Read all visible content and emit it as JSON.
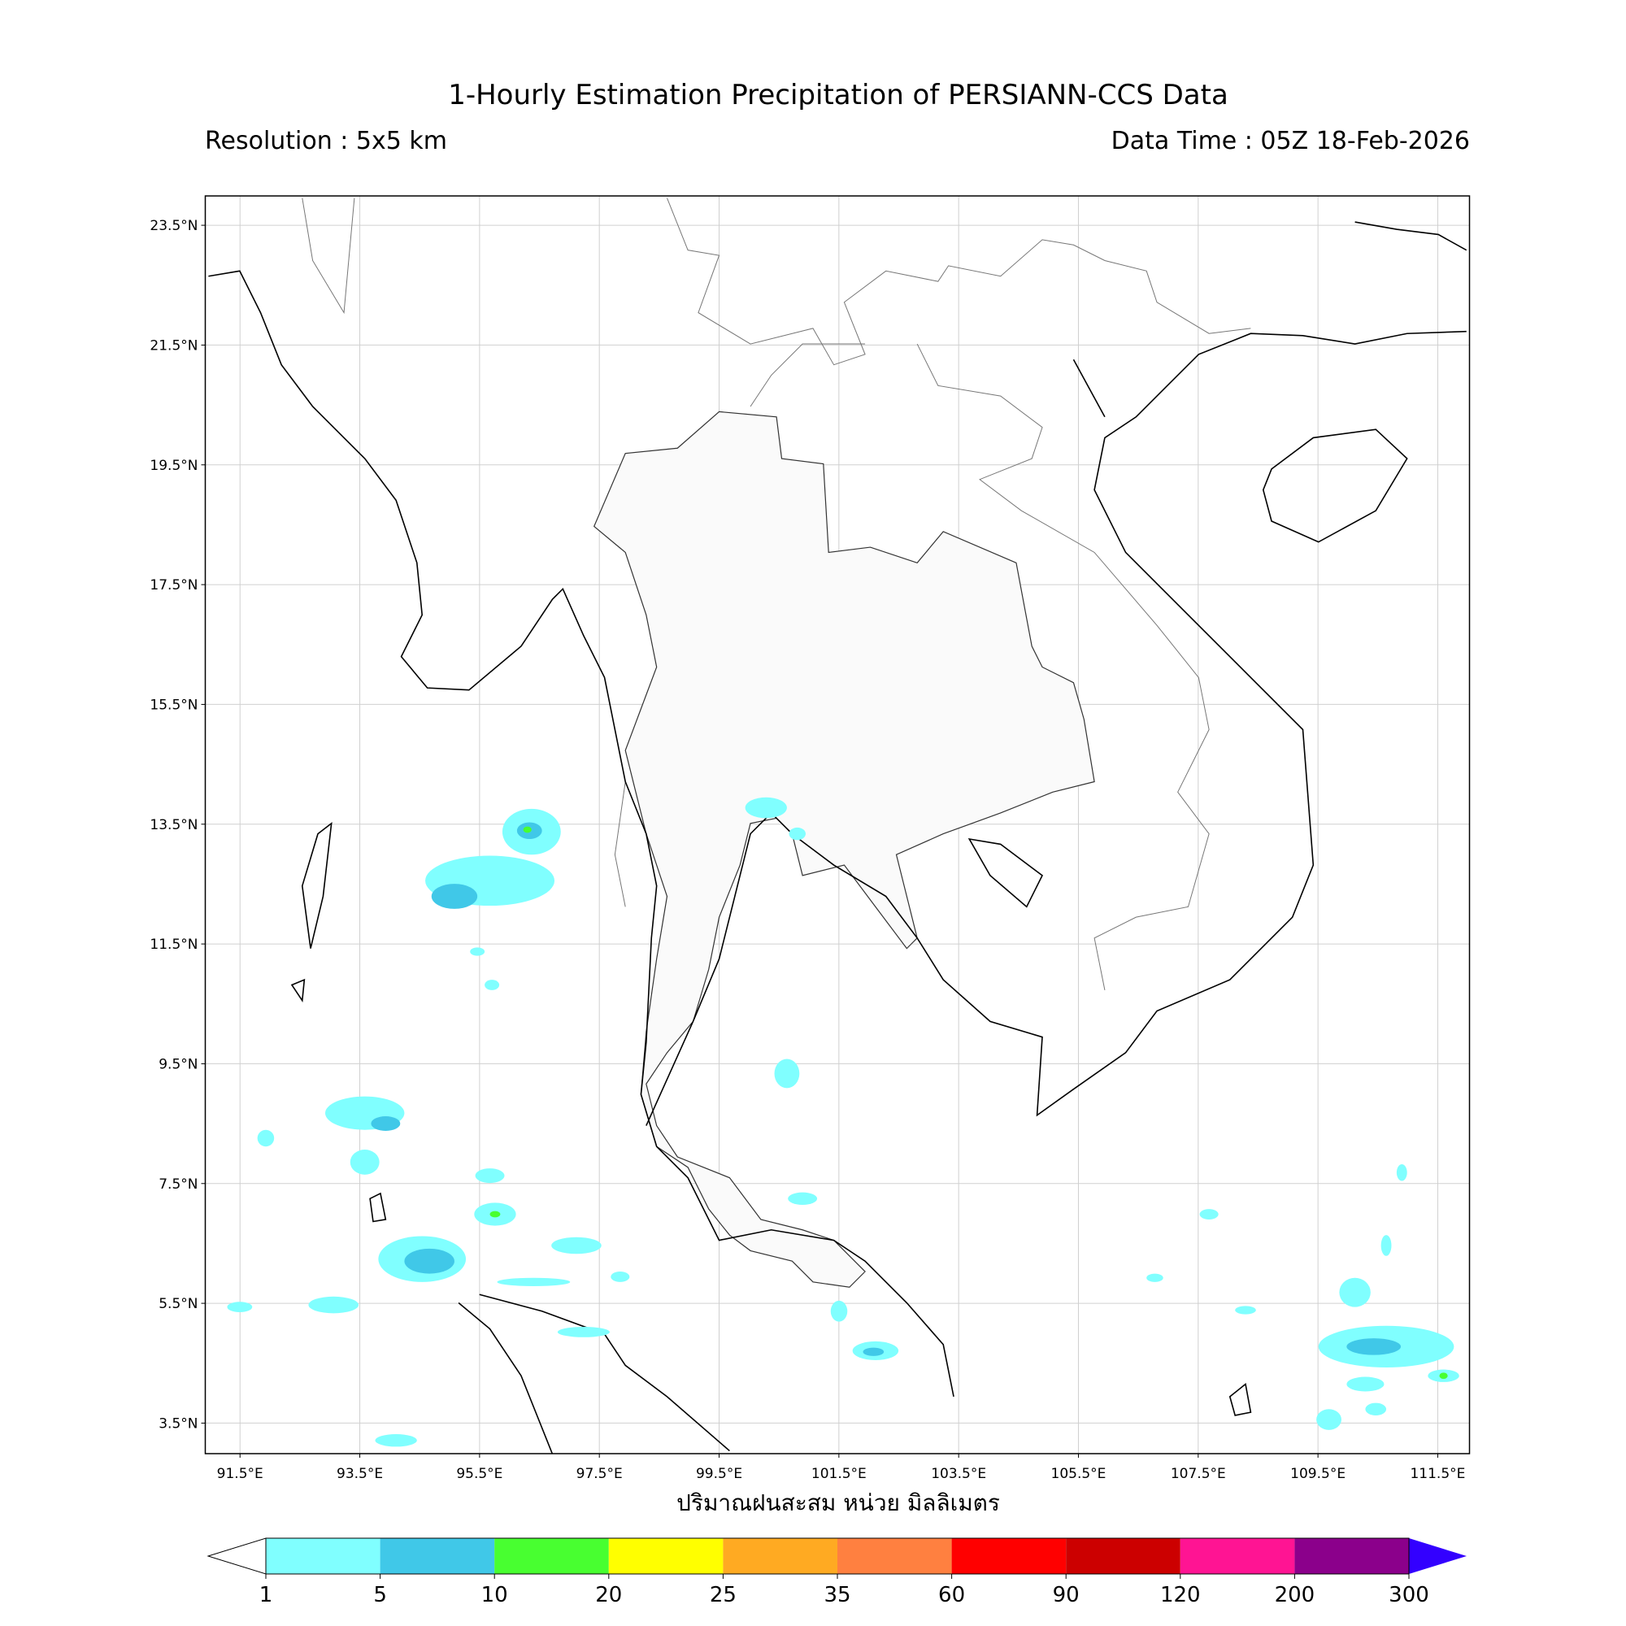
{
  "header": {
    "title": "1-Hourly Estimation Precipitation of PERSIANN-CCS Data",
    "resolution": "Resolution : 5x5 km",
    "data_time": "Data Time : 05Z 18-Feb-2026"
  },
  "map": {
    "lonlim": [
      90.92,
      112.03
    ],
    "latlim": [
      2.99,
      23.99
    ],
    "grid": true,
    "lon_ticks": [
      {
        "value": 91.5,
        "label": "91.5°E"
      },
      {
        "value": 93.5,
        "label": "93.5°E"
      },
      {
        "value": 95.5,
        "label": "95.5°E"
      },
      {
        "value": 97.5,
        "label": "97.5°E"
      },
      {
        "value": 99.5,
        "label": "99.5°E"
      },
      {
        "value": 101.5,
        "label": "101.5°E"
      },
      {
        "value": 103.5,
        "label": "103.5°E"
      },
      {
        "value": 105.5,
        "label": "105.5°E"
      },
      {
        "value": 107.5,
        "label": "107.5°E"
      },
      {
        "value": 109.5,
        "label": "109.5°E"
      },
      {
        "value": 111.5,
        "label": "111.5°E"
      }
    ],
    "lat_ticks": [
      {
        "value": 23.5,
        "label": "23.5°N"
      },
      {
        "value": 21.5,
        "label": "21.5°N"
      },
      {
        "value": 19.5,
        "label": "19.5°N"
      },
      {
        "value": 17.5,
        "label": "17.5°N"
      },
      {
        "value": 15.5,
        "label": "15.5°N"
      },
      {
        "value": 13.5,
        "label": "13.5°N"
      },
      {
        "value": 11.5,
        "label": "11.5°N"
      },
      {
        "value": 9.5,
        "label": "9.5°N"
      },
      {
        "value": 7.5,
        "label": "7.5°N"
      },
      {
        "value": 5.5,
        "label": "5.5°N"
      },
      {
        "value": 3.5,
        "label": "3.5°N"
      }
    ]
  },
  "colorbar": {
    "label": "ปริมาณฝนสะสม หน่วย มิลลิเมตร",
    "levels": [
      1,
      5,
      10,
      20,
      25,
      35,
      60,
      90,
      120,
      200,
      300
    ],
    "colors": [
      "#80ffff",
      "#40c8e8",
      "#48ff30",
      "#ffff00",
      "#ffaa22",
      "#ff8040",
      "#ff0000",
      "#cc0000",
      "#ff1493",
      "#8b008b"
    ],
    "under_color": "#ffffff",
    "over_color": "#3300ff"
  }
}
